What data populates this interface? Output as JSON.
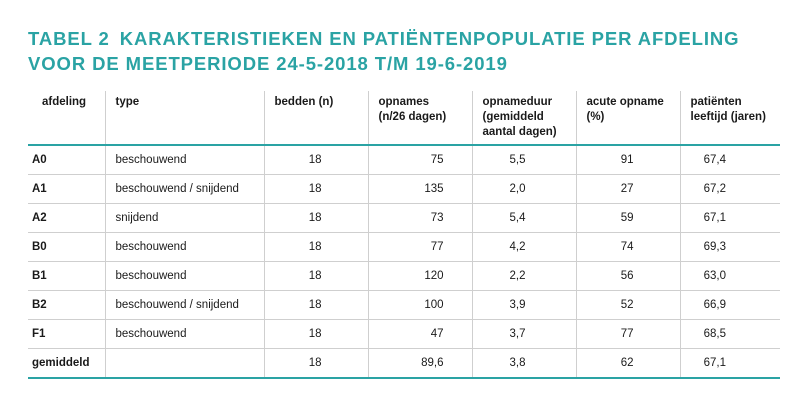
{
  "title": {
    "label": "TABEL 2",
    "text": "KARAKTERISTIEKEN EN PATIËNTENPOPULATIE PER AFDELING VOOR DE MEETPERIODE 24-5-2018 T/M 19-6-2019"
  },
  "colors": {
    "accent": "#2aa3a4",
    "rule": "#cfcfcf"
  },
  "table": {
    "headers": [
      [
        "afdeling"
      ],
      [
        "type"
      ],
      [
        "bedden (n)"
      ],
      [
        "opnames",
        "(n/26 dagen)"
      ],
      [
        "opnameduur",
        "(gemiddeld",
        "aantal dagen)"
      ],
      [
        "acute opname",
        "(%)"
      ],
      [
        "patiënten",
        "leeftijd (jaren)"
      ]
    ],
    "rows": [
      [
        "A0",
        "beschouwend",
        "18",
        "75",
        "5,5",
        "91",
        "67,4"
      ],
      [
        "A1",
        "beschouwend / snijdend",
        "18",
        "135",
        "2,0",
        "27",
        "67,2"
      ],
      [
        "A2",
        "snijdend",
        "18",
        "73",
        "5,4",
        "59",
        "67,1"
      ],
      [
        "B0",
        "beschouwend",
        "18",
        "77",
        "4,2",
        "74",
        "69,3"
      ],
      [
        "B1",
        "beschouwend",
        "18",
        "120",
        "2,2",
        "56",
        "63,0"
      ],
      [
        "B2",
        "beschouwend / snijdend",
        "18",
        "100",
        "3,9",
        "52",
        "66,9"
      ],
      [
        "F1",
        "beschouwend",
        "18",
        "47",
        "3,7",
        "77",
        "68,5"
      ],
      [
        "gemiddeld",
        "",
        "18",
        "89,6",
        "3,8",
        "62",
        "67,1"
      ]
    ]
  }
}
